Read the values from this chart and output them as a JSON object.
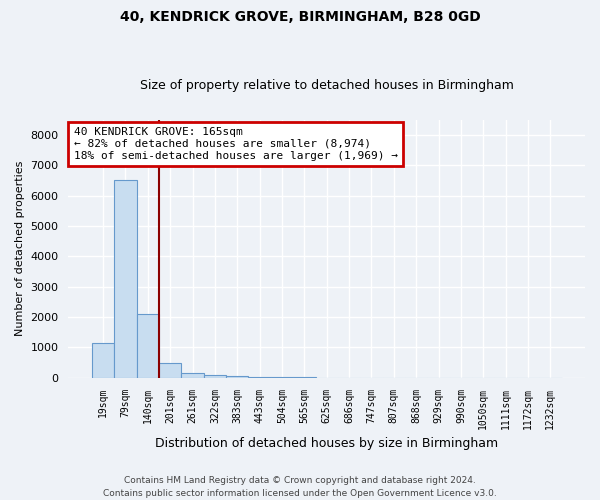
{
  "title1": "40, KENDRICK GROVE, BIRMINGHAM, B28 0GD",
  "title2": "Size of property relative to detached houses in Birmingham",
  "xlabel": "Distribution of detached houses by size in Birmingham",
  "ylabel": "Number of detached properties",
  "categories": [
    "19sqm",
    "79sqm",
    "140sqm",
    "201sqm",
    "261sqm",
    "322sqm",
    "383sqm",
    "443sqm",
    "504sqm",
    "565sqm",
    "625sqm",
    "686sqm",
    "747sqm",
    "807sqm",
    "868sqm",
    "929sqm",
    "990sqm",
    "1050sqm",
    "1111sqm",
    "1172sqm",
    "1232sqm"
  ],
  "values": [
    1150,
    6500,
    2100,
    500,
    175,
    90,
    55,
    35,
    22,
    15,
    10,
    7,
    5,
    4,
    3,
    3,
    2,
    2,
    1,
    1,
    1
  ],
  "bar_color": "#c8ddf0",
  "bar_edge_color": "#6699cc",
  "vline_color": "#8b0000",
  "annotation_text": "40 KENDRICK GROVE: 165sqm\n← 82% of detached houses are smaller (8,974)\n18% of semi-detached houses are larger (1,969) →",
  "annotation_box_color": "#cc0000",
  "ylim": [
    0,
    8500
  ],
  "yticks": [
    0,
    1000,
    2000,
    3000,
    4000,
    5000,
    6000,
    7000,
    8000
  ],
  "footer1": "Contains HM Land Registry data © Crown copyright and database right 2024.",
  "footer2": "Contains public sector information licensed under the Open Government Licence v3.0.",
  "bg_color": "#eef2f7",
  "grid_color": "#ffffff",
  "title_fontsize": 10,
  "subtitle_fontsize": 9
}
